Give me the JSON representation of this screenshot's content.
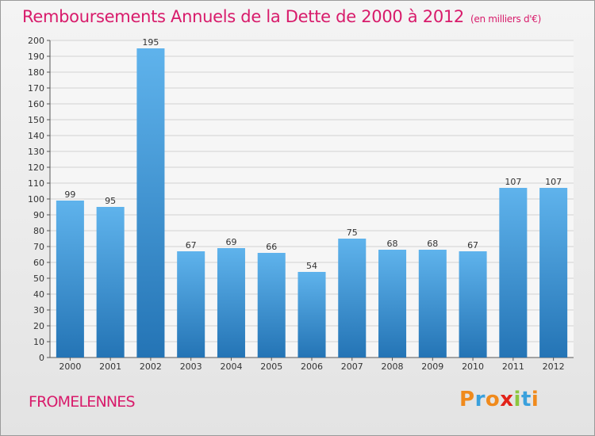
{
  "title": "Remboursements Annuels de la Dette de 2000 à 2012",
  "subtitle": "(en milliers d'€)",
  "town": "FROMELENNES",
  "logo": [
    "P",
    "r",
    "o",
    "x",
    "i",
    "t",
    "i"
  ],
  "logo_colors": [
    "#f08a1c",
    "#3aa0dc",
    "#f08a1c",
    "#e2231a",
    "#8cc63f",
    "#3aa0dc",
    "#f08a1c"
  ],
  "colors": {
    "accent": "#d81b6b",
    "bar_top": "#5fb3ec",
    "bar_bottom": "#2474b5"
  },
  "chart_data": {
    "type": "bar",
    "categories": [
      "2000",
      "2001",
      "2002",
      "2003",
      "2004",
      "2005",
      "2006",
      "2007",
      "2008",
      "2009",
      "2010",
      "2011",
      "2012"
    ],
    "values": [
      99,
      95,
      195,
      67,
      69,
      66,
      54,
      75,
      68,
      68,
      67,
      107,
      107
    ],
    "ylim": [
      0,
      200
    ],
    "ytick_step": 10,
    "grid": true
  }
}
